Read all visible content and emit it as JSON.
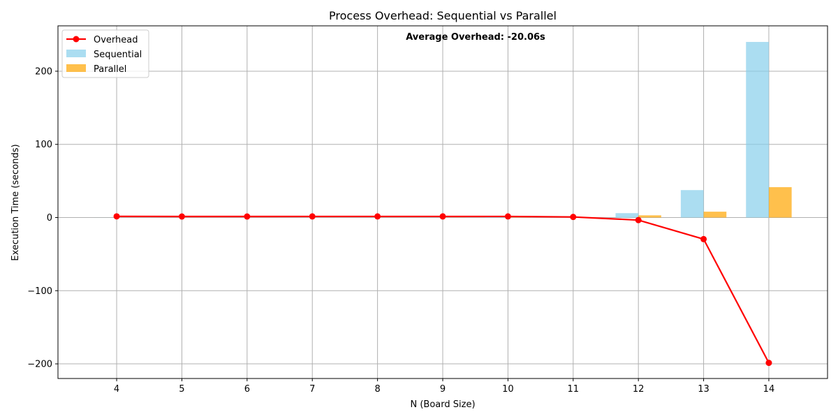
{
  "chart_data": {
    "type": "bar",
    "title": "Process Overhead: Sequential vs Parallel",
    "xlabel": "N (Board Size)",
    "ylabel": "Execution Time (seconds)",
    "annotation": "Average Overhead: -20.06s",
    "categories": [
      "4",
      "5",
      "6",
      "7",
      "8",
      "9",
      "10",
      "11",
      "12",
      "13",
      "14"
    ],
    "x": [
      4,
      5,
      6,
      7,
      8,
      9,
      10,
      11,
      12,
      13,
      14
    ],
    "xlim": [
      3.1,
      14.9
    ],
    "ylim": [
      -220,
      262
    ],
    "yticks": [
      -200,
      -100,
      0,
      100,
      200
    ],
    "ytick_labels": [
      "−200",
      "−100",
      "0",
      "100",
      "200"
    ],
    "grid": true,
    "legend_position": "top-left",
    "series": [
      {
        "name": "Overhead",
        "kind": "line",
        "color": "#ff0000",
        "values": [
          1.6,
          1.4,
          1.4,
          1.5,
          1.5,
          1.5,
          1.5,
          0.8,
          -3.5,
          -29.5,
          -198.6
        ]
      },
      {
        "name": "Sequential",
        "kind": "bar",
        "color": "#87ceeb",
        "values": [
          0.01,
          0.01,
          0.01,
          0.02,
          0.05,
          0.2,
          0.5,
          1.5,
          6.0,
          37.5,
          240.0
        ]
      },
      {
        "name": "Parallel",
        "kind": "bar",
        "color": "#ffa500",
        "values": [
          0.01,
          0.01,
          0.01,
          0.02,
          0.04,
          0.1,
          0.3,
          0.5,
          3.0,
          8.0,
          41.5
        ]
      }
    ]
  }
}
